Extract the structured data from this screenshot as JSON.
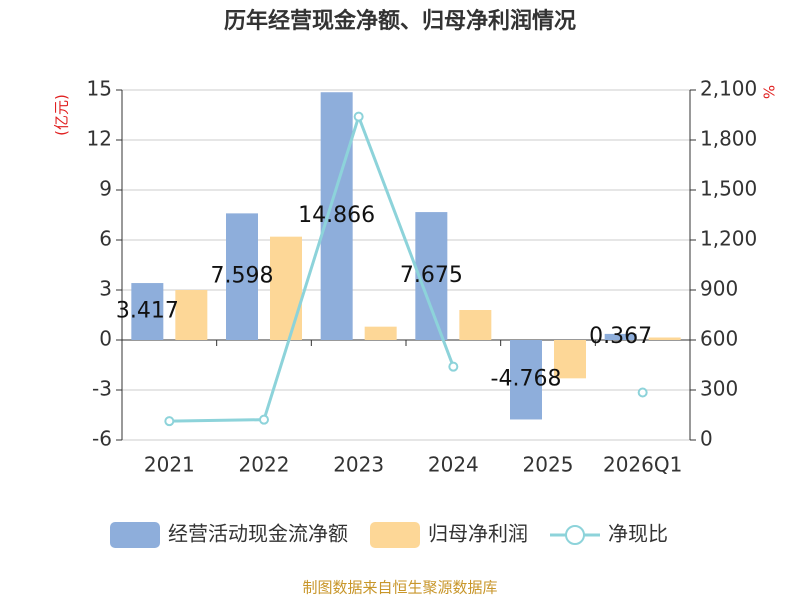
{
  "chart_data": {
    "type": "bar-line",
    "title": "历年经营现金净额、归母净利润情况",
    "y_label": "(亿元)",
    "y2_label": "%",
    "source": "制图数据来自恒生聚源数据库",
    "categories": [
      "2021",
      "2022",
      "2023",
      "2024",
      "2025",
      "2026Q1"
    ],
    "ylim": [
      -6,
      15
    ],
    "yticks": [
      -6,
      -3,
      0,
      3,
      6,
      9,
      12,
      15
    ],
    "y2lim": [
      0,
      2100
    ],
    "y2ticks": [
      0,
      300,
      600,
      900,
      {
        "value": 1200,
        "label": "1,200"
      },
      {
        "value": 1500,
        "label": "1,500"
      },
      {
        "value": 1800,
        "label": "1,800"
      },
      {
        "value": 2100,
        "label": "2,100"
      }
    ],
    "grid": true,
    "legend": "bottom",
    "series": [
      {
        "name": "经营活动现金流净额",
        "type": "bar",
        "color": "#8eaedb",
        "values": [
          3.417,
          7.598,
          14.866,
          7.675,
          -4.768,
          0.367
        ],
        "show_labels": true
      },
      {
        "name": "归母净利润",
        "type": "bar",
        "color": "#fdd797",
        "values": [
          3.0,
          6.2,
          0.8,
          1.8,
          -2.3,
          0.15
        ]
      },
      {
        "name": "净现比",
        "type": "line",
        "axis": "y2",
        "color": "#8dd3da",
        "values": [
          113,
          122,
          1940,
          440,
          null,
          285
        ]
      }
    ]
  }
}
